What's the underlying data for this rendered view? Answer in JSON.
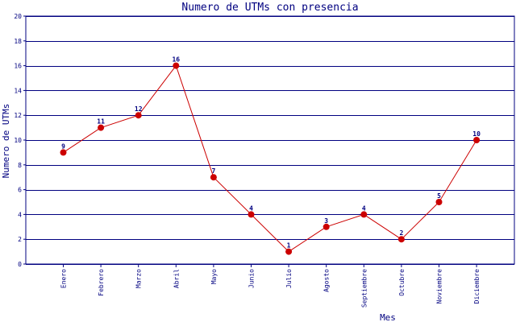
{
  "chart_data": {
    "type": "line",
    "title": "Numero de UTMs con presencia",
    "xlabel": "Mes",
    "ylabel": "Numero de UTMs",
    "categories": [
      "Enero",
      "Febrero",
      "Marzo",
      "Abril",
      "Mayo",
      "Junio",
      "Julio",
      "Agosto",
      "Septiembre",
      "Octubre",
      "Noviembre",
      "Diciembre"
    ],
    "values": [
      9,
      11,
      12,
      16,
      7,
      4,
      1,
      3,
      4,
      2,
      5,
      10
    ],
    "ylim": [
      0,
      20
    ],
    "yticks": [
      0,
      2,
      4,
      6,
      8,
      10,
      12,
      14,
      16,
      18,
      20
    ],
    "grid": true,
    "colors": {
      "line": "#cc0000",
      "marker": "#cc0000",
      "grid": "#000080",
      "text": "#000080"
    }
  }
}
